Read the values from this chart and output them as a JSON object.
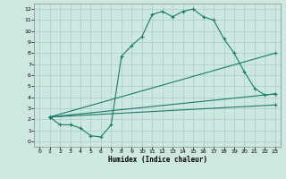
{
  "title": "",
  "xlabel": "Humidex (Indice chaleur)",
  "bg_color": "#cce8e0",
  "grid_color": "#aacccc",
  "line_color": "#1a7a6a",
  "xlim": [
    -0.5,
    23.5
  ],
  "ylim": [
    -0.5,
    12.5
  ],
  "xticks": [
    0,
    1,
    2,
    3,
    4,
    5,
    6,
    7,
    8,
    9,
    10,
    11,
    12,
    13,
    14,
    15,
    16,
    17,
    18,
    19,
    20,
    21,
    22,
    23
  ],
  "yticks": [
    0,
    1,
    2,
    3,
    4,
    5,
    6,
    7,
    8,
    9,
    10,
    11,
    12
  ],
  "line1_x": [
    1,
    2,
    3,
    4,
    5,
    6,
    7,
    8,
    9,
    10,
    11,
    12,
    13,
    14,
    15,
    16,
    17,
    18,
    19,
    20,
    21,
    22,
    23
  ],
  "line1_y": [
    2.2,
    1.5,
    1.5,
    1.2,
    0.5,
    0.4,
    1.5,
    7.7,
    8.7,
    9.5,
    11.5,
    11.8,
    11.3,
    11.8,
    12.0,
    11.3,
    11.0,
    9.3,
    8.0,
    6.3,
    4.8,
    4.2,
    4.3
  ],
  "line2_x": [
    1,
    23
  ],
  "line2_y": [
    2.2,
    8.0
  ],
  "line3_x": [
    1,
    23
  ],
  "line3_y": [
    2.2,
    4.3
  ],
  "line4_x": [
    1,
    23
  ],
  "line4_y": [
    2.2,
    3.3
  ]
}
